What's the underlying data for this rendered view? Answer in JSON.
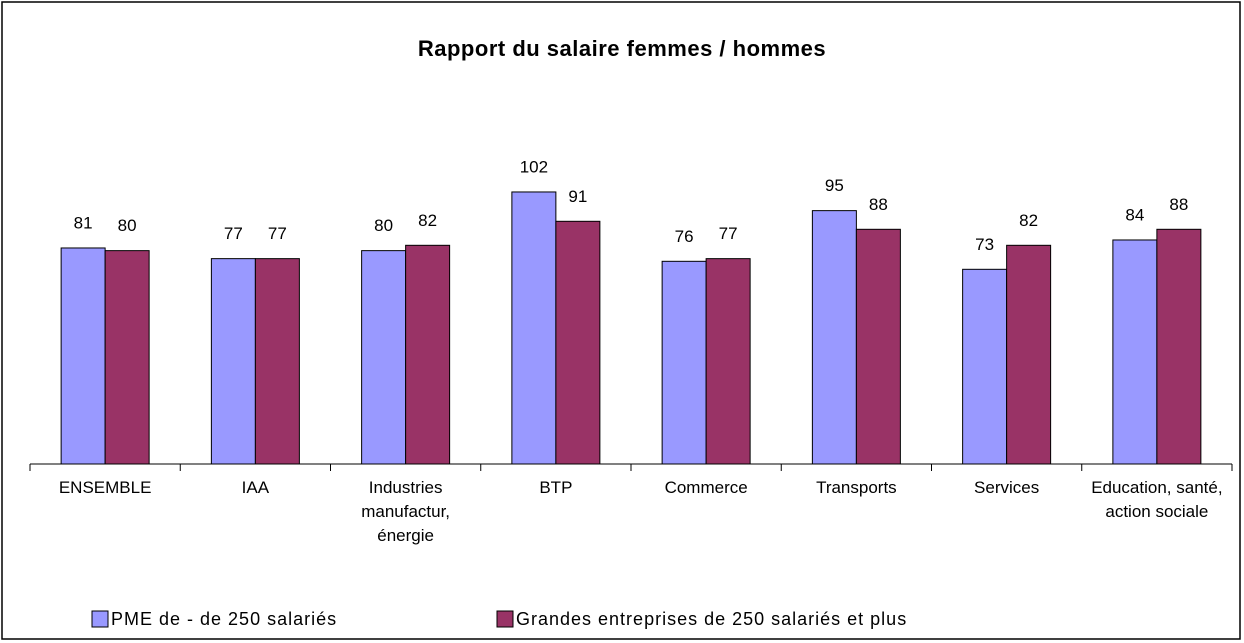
{
  "chart_data": {
    "type": "bar",
    "title": "Rapport du salaire femmes / hommes",
    "categories": [
      "ENSEMBLE",
      "IAA",
      "Industries manufactur, énergie",
      "BTP",
      "Commerce",
      "Transports",
      "Services",
      "Education, santé, action sociale"
    ],
    "series": [
      {
        "name": "PME de - de 250 salariés",
        "color": "#9999ff",
        "values": [
          81,
          77,
          80,
          102,
          76,
          95,
          73,
          84
        ]
      },
      {
        "name": "Grandes entreprises de 250 salariés et plus",
        "color": "#993366",
        "values": [
          80,
          77,
          82,
          91,
          77,
          88,
          82,
          88
        ]
      }
    ],
    "legend": "bottom"
  }
}
